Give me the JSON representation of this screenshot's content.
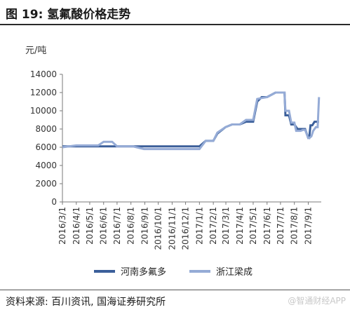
{
  "figure": {
    "title": "图 19:  氢氟酸价格走势",
    "source": "资料来源: 百川资讯, 国海证券研究所",
    "watermark": "@智通财经APP"
  },
  "chart_data": {
    "type": "line",
    "unit": "元/吨",
    "ylim": [
      0,
      14000
    ],
    "yticks": [
      0,
      2000,
      4000,
      6000,
      8000,
      10000,
      12000,
      14000
    ],
    "x_range": [
      "2016-03-01",
      "2017-09-30"
    ],
    "categories": [
      "2016/3/1",
      "2016/4/1",
      "2016/5/1",
      "2016/6/1",
      "2016/7/1",
      "2016/8/1",
      "2016/9/1",
      "2016/10/1",
      "2016/11/1",
      "2016/12/1",
      "2017/1/1",
      "2017/2/1",
      "2017/3/1",
      "2017/4/1",
      "2017/5/1",
      "2017/6/1",
      "2017/7/1",
      "2017/8/1",
      "2017/9/1"
    ],
    "grid": false,
    "legend_position": "bottom",
    "series": [
      {
        "name": "河南多氟多",
        "color": "#3b5f9a",
        "x": [
          "2016-03-01",
          "2016-04-01",
          "2016-04-05",
          "2016-12-31",
          "2017-01-01",
          "2017-01-15",
          "2017-02-01",
          "2017-02-10",
          "2017-02-28",
          "2017-03-15",
          "2017-04-01",
          "2017-04-15",
          "2017-05-01",
          "2017-05-10",
          "2017-05-20",
          "2017-06-01",
          "2017-06-20",
          "2017-06-30",
          "2017-07-01",
          "2017-07-10",
          "2017-07-12",
          "2017-07-20",
          "2017-07-25",
          "2017-08-01",
          "2017-08-08",
          "2017-08-15",
          "2017-08-20",
          "2017-08-25",
          "2017-09-01",
          "2017-09-03",
          "2017-09-06",
          "2017-09-10",
          "2017-09-15",
          "2017-09-22",
          "2017-09-25"
        ],
        "y": [
          6100,
          6100,
          6100,
          6100,
          6100,
          6700,
          6700,
          7500,
          8200,
          8500,
          8500,
          8800,
          8800,
          11000,
          11500,
          11500,
          12000,
          12000,
          12000,
          12000,
          9500,
          9500,
          8500,
          8500,
          8000,
          8000,
          8000,
          8000,
          7000,
          7000,
          8400,
          8400,
          8800,
          8800,
          8800
        ]
      },
      {
        "name": "浙江梁成",
        "color": "#95abd6",
        "x": [
          "2016-03-01",
          "2016-04-01",
          "2016-05-20",
          "2016-06-01",
          "2016-06-20",
          "2016-07-01",
          "2016-08-05",
          "2016-08-30",
          "2016-09-01",
          "2016-12-31",
          "2017-01-01",
          "2017-01-15",
          "2017-02-01",
          "2017-02-10",
          "2017-02-28",
          "2017-03-15",
          "2017-04-01",
          "2017-04-15",
          "2017-05-01",
          "2017-05-10",
          "2017-05-20",
          "2017-06-01",
          "2017-06-20",
          "2017-06-30",
          "2017-07-01",
          "2017-07-10",
          "2017-07-12",
          "2017-07-20",
          "2017-07-25",
          "2017-08-01",
          "2017-08-05",
          "2017-08-15",
          "2017-08-20",
          "2017-08-25",
          "2017-09-01",
          "2017-09-03",
          "2017-09-08",
          "2017-09-12",
          "2017-09-18",
          "2017-09-22",
          "2017-09-25"
        ],
        "y": [
          6000,
          6200,
          6200,
          6600,
          6600,
          6100,
          6100,
          5800,
          5800,
          5800,
          5800,
          6700,
          6700,
          7600,
          8200,
          8500,
          8500,
          9000,
          9000,
          11300,
          11400,
          11500,
          12000,
          12000,
          12000,
          12000,
          10000,
          10000,
          8700,
          8700,
          7800,
          7800,
          7900,
          7900,
          7000,
          7000,
          7200,
          7800,
          8200,
          8200,
          11500
        ]
      }
    ]
  }
}
